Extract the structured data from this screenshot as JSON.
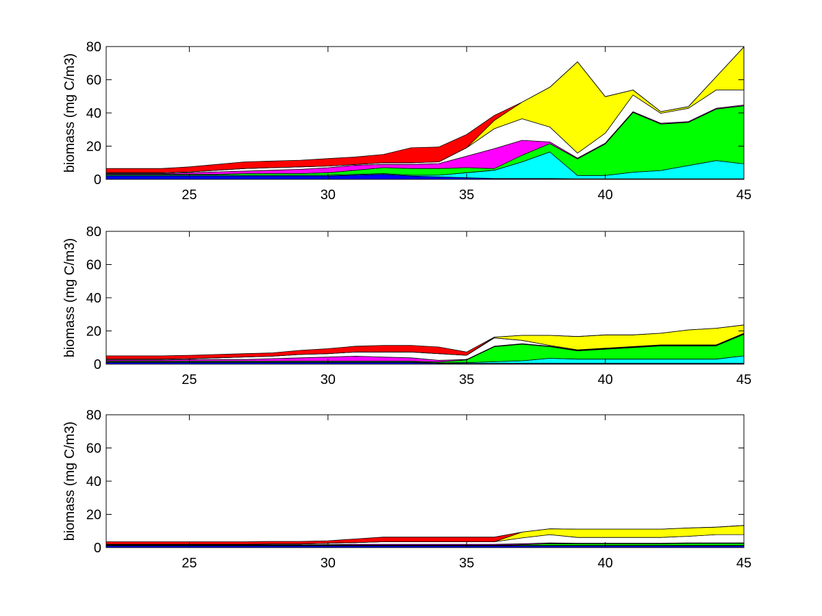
{
  "chart_data": [
    {
      "type": "area",
      "stacked": true,
      "ylabel": "biomass (mg C/m3)",
      "xlim": [
        22,
        45
      ],
      "ylim": [
        0,
        80
      ],
      "xticks": [
        25,
        30,
        35,
        40,
        45
      ],
      "yticks": [
        0,
        20,
        40,
        60,
        80
      ],
      "grid": false,
      "x": [
        22,
        23,
        24,
        25,
        26,
        27,
        28,
        29,
        30,
        31,
        32,
        33,
        34,
        35,
        36,
        37,
        38,
        39,
        40,
        41,
        42,
        43,
        44,
        45
      ],
      "series": [
        {
          "color": "#0000ff",
          "values": [
            2,
            2,
            2,
            2,
            2,
            2,
            2,
            2,
            2,
            2.5,
            3,
            2,
            1.5,
            1,
            0.5,
            0.5,
            0.5,
            0.3,
            0.3,
            0.3,
            0.3,
            0.3,
            0.3,
            0.3
          ]
        },
        {
          "color": "#00ffff",
          "values": [
            0.5,
            0.5,
            0.5,
            0.5,
            0.5,
            0.5,
            0.5,
            0.5,
            0.5,
            0.5,
            0.5,
            0.5,
            1,
            3,
            5,
            10,
            16,
            2,
            2,
            4,
            5,
            8,
            11,
            9
          ]
        },
        {
          "color": "#00ff00",
          "values": [
            0.5,
            0.5,
            0.5,
            0.5,
            0.5,
            1,
            1,
            1,
            1.5,
            2.5,
            3.5,
            4,
            4,
            3,
            1,
            4,
            5,
            10,
            19,
            36,
            28,
            26,
            31,
            35
          ]
        },
        {
          "color": "#ff00ff",
          "values": [
            0.5,
            0.5,
            0.5,
            1,
            1.5,
            1.5,
            2,
            2.5,
            3,
            3,
            2,
            2.5,
            3,
            7,
            12,
            9,
            1,
            0.5,
            0.5,
            0.5,
            0.5,
            0.5,
            0.5,
            0.5
          ]
        },
        {
          "color": "#ffffff",
          "values": [
            0.5,
            0.5,
            0.5,
            0.5,
            1,
            1.5,
            1.5,
            1.5,
            1,
            0.5,
            1,
            1,
            1,
            5,
            12,
            13,
            9,
            3,
            6,
            10,
            6,
            8,
            11,
            9
          ]
        },
        {
          "color": "#ffff00",
          "values": [
            0,
            0,
            0,
            0,
            0,
            0,
            0,
            0,
            0,
            0,
            0,
            0,
            0,
            0,
            5,
            10,
            24,
            55,
            22,
            3,
            1,
            1,
            8,
            26
          ]
        },
        {
          "color": "#ff0000",
          "values": [
            2.5,
            2.5,
            2.5,
            3,
            3.5,
            4,
            4,
            4,
            4.5,
            4.5,
            5,
            9,
            9,
            8,
            3,
            0,
            0,
            0,
            0,
            0,
            0,
            0,
            0,
            0
          ]
        }
      ]
    },
    {
      "type": "area",
      "stacked": true,
      "ylabel": "biomass (mg C/m3)",
      "xlim": [
        22,
        45
      ],
      "ylim": [
        0,
        80
      ],
      "xticks": [
        25,
        30,
        35,
        40,
        45
      ],
      "yticks": [
        0,
        20,
        40,
        60,
        80
      ],
      "grid": false,
      "x": [
        22,
        23,
        24,
        25,
        26,
        27,
        28,
        29,
        30,
        31,
        32,
        33,
        34,
        35,
        36,
        37,
        38,
        39,
        40,
        41,
        42,
        43,
        44,
        45
      ],
      "series": [
        {
          "color": "#0000ff",
          "values": [
            1,
            1,
            1,
            1,
            1,
            1,
            1,
            1,
            1,
            1,
            1,
            1,
            0.5,
            0.5,
            0.5,
            0.5,
            0.5,
            0.5,
            0.5,
            0.5,
            0.5,
            0.5,
            0.5,
            0.5
          ]
        },
        {
          "color": "#00ffff",
          "values": [
            0.3,
            0.3,
            0.3,
            0.3,
            0.3,
            0.3,
            0.3,
            0.3,
            0.3,
            0.3,
            0.3,
            0.3,
            0.3,
            0.5,
            1,
            1.5,
            3,
            2.5,
            2.5,
            2.5,
            2.5,
            2.5,
            2.5,
            4.5
          ]
        },
        {
          "color": "#00ff00",
          "values": [
            0.5,
            0.5,
            0.5,
            0.5,
            0.5,
            0.5,
            0.5,
            0.5,
            0.5,
            0.5,
            0.5,
            0.5,
            0.5,
            1.5,
            9,
            10,
            7,
            5,
            6,
            7,
            8,
            8,
            8,
            13
          ]
        },
        {
          "color": "#ff00ff",
          "values": [
            0.7,
            0.7,
            0.7,
            1,
            1,
            1,
            1.5,
            2,
            2.5,
            3,
            2.5,
            2,
            1,
            0.3,
            0.3,
            0.3,
            0.3,
            0.3,
            0.3,
            0.3,
            0.3,
            0.3,
            0.3,
            0.3
          ]
        },
        {
          "color": "#ffffff",
          "values": [
            0.5,
            0.5,
            0.5,
            0.5,
            1,
            1.5,
            1.5,
            2,
            2,
            2.5,
            3,
            3.5,
            4,
            2.5,
            5,
            2,
            0.5,
            0.3,
            0.3,
            0.3,
            0.3,
            0.3,
            0.3,
            0.3
          ]
        },
        {
          "color": "#ffff00",
          "values": [
            0,
            0,
            0,
            0,
            0,
            0,
            0,
            0,
            0,
            0,
            0,
            0,
            0,
            0,
            0.5,
            3,
            6,
            8,
            8,
            7,
            7,
            9,
            10,
            5
          ]
        },
        {
          "color": "#ff0000",
          "values": [
            2,
            2,
            2,
            2,
            2,
            2,
            2,
            2.5,
            3,
            3.5,
            4,
            4,
            4,
            2,
            0,
            0,
            0,
            0,
            0,
            0,
            0,
            0,
            0,
            0
          ]
        }
      ]
    },
    {
      "type": "area",
      "stacked": true,
      "ylabel": "biomass (mg C/m3)",
      "xlim": [
        22,
        45
      ],
      "ylim": [
        0,
        80
      ],
      "xticks": [
        25,
        30,
        35,
        40,
        45
      ],
      "yticks": [
        0,
        20,
        40,
        60,
        80
      ],
      "grid": false,
      "x": [
        22,
        23,
        24,
        25,
        26,
        27,
        28,
        29,
        30,
        31,
        32,
        33,
        34,
        35,
        36,
        37,
        38,
        39,
        40,
        41,
        42,
        43,
        44,
        45
      ],
      "series": [
        {
          "color": "#0000ff",
          "values": [
            1,
            1,
            1,
            1,
            1,
            1,
            1,
            1,
            1,
            1,
            1,
            1,
            1,
            1,
            1,
            1,
            1,
            1,
            1,
            1,
            1,
            1,
            1,
            1
          ]
        },
        {
          "color": "#00ffff",
          "values": [
            0.3,
            0.3,
            0.3,
            0.3,
            0.3,
            0.3,
            0.3,
            0.3,
            0.3,
            0.3,
            0.3,
            0.3,
            0.3,
            0.3,
            0.3,
            0.3,
            0.3,
            0.3,
            0.3,
            0.3,
            0.3,
            0.3,
            0.3,
            0.3
          ]
        },
        {
          "color": "#00ff00",
          "values": [
            0.2,
            0.2,
            0.2,
            0.2,
            0.2,
            0.2,
            0.2,
            0.2,
            0.2,
            0.2,
            0.2,
            0.2,
            0.2,
            0.2,
            0.2,
            0.5,
            1,
            1,
            1,
            1,
            1,
            1.2,
            1.2,
            1.2
          ]
        },
        {
          "color": "#ff00ff",
          "values": [
            0.2,
            0.2,
            0.2,
            0.2,
            0.2,
            0.2,
            0.2,
            0.2,
            0.3,
            0.5,
            0.5,
            0.5,
            0.5,
            0.5,
            0.5,
            0.5,
            0.5,
            0.3,
            0.3,
            0.3,
            0.3,
            0.3,
            0.3,
            0.3
          ]
        },
        {
          "color": "#ffffff",
          "values": [
            0.3,
            0.3,
            0.3,
            0.3,
            0.3,
            0.3,
            0.5,
            0.5,
            0.8,
            1,
            1.5,
            1.5,
            1.5,
            1.5,
            1.5,
            3.5,
            5,
            3.5,
            3.5,
            3.5,
            3.5,
            4,
            5,
            5
          ]
        },
        {
          "color": "#ffff00",
          "values": [
            0,
            0,
            0,
            0,
            0,
            0,
            0,
            0,
            0,
            0,
            0,
            0,
            0,
            0,
            0,
            3.5,
            3.5,
            5,
            5,
            5,
            5,
            5,
            4.5,
            5.5
          ]
        },
        {
          "color": "#ff0000",
          "values": [
            1.5,
            1.5,
            1.5,
            1.5,
            1.5,
            1.5,
            1.5,
            1.5,
            1.5,
            2.2,
            2.8,
            2.8,
            2.8,
            2.8,
            2.8,
            0,
            0,
            0,
            0,
            0,
            0,
            0,
            0,
            0
          ]
        }
      ]
    }
  ]
}
